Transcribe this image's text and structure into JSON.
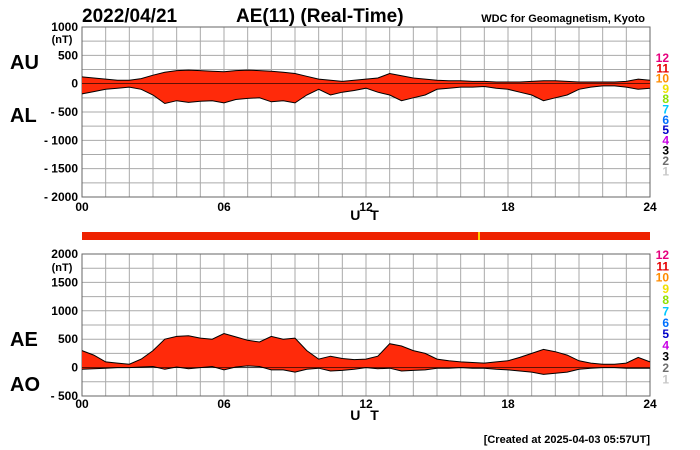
{
  "header": {
    "date": "2022/04/21",
    "title": "AE(11) (Real-Time)",
    "source": "WDC for Geomagnetism, Kyoto"
  },
  "footer": {
    "created": "[Created at 2025-04-03 05:57UT]"
  },
  "colors": {
    "fill": "#ff2a0a",
    "outline": "#000000",
    "grid": "#aaaaaa",
    "data_bar": "#ee2200",
    "data_bar_mark": "#ffcc00"
  },
  "legend": {
    "items": [
      {
        "label": "12",
        "color": "#e6007e"
      },
      {
        "label": "11",
        "color": "#e60000"
      },
      {
        "label": "10",
        "color": "#ff8c00"
      },
      {
        "label": "9",
        "color": "#f0e000"
      },
      {
        "label": "8",
        "color": "#90e000"
      },
      {
        "label": "7",
        "color": "#00c8ff"
      },
      {
        "label": "6",
        "color": "#0070ff"
      },
      {
        "label": "5",
        "color": "#0000c8"
      },
      {
        "label": "4",
        "color": "#c800e6"
      },
      {
        "label": "3",
        "color": "#000000"
      },
      {
        "label": "2",
        "color": "#6e6e6e"
      },
      {
        "label": "1",
        "color": "#c8c8c8"
      }
    ]
  },
  "chart_data": [
    {
      "type": "area",
      "id": "au-al",
      "unit_label": "(nT)",
      "series_labels": [
        "AU",
        "AL"
      ],
      "xlabel": "U T",
      "xlim": [
        0,
        24
      ],
      "ylim": [
        -2000,
        1000
      ],
      "x_ticks": [
        0,
        6,
        12,
        18,
        24
      ],
      "x_tick_labels": [
        "00",
        "06",
        "12",
        "18",
        "24"
      ],
      "y_ticks": [
        1000,
        500,
        0,
        -500,
        -1000,
        -1500,
        -2000
      ],
      "y_tick_labels": [
        "1000",
        "500",
        "0",
        "- 500",
        "- 1000",
        "- 1500",
        "- 2000"
      ],
      "grid": true,
      "x": [
        0,
        0.5,
        1,
        1.5,
        2,
        2.5,
        3,
        3.5,
        4,
        4.5,
        5,
        5.5,
        6,
        6.5,
        7,
        7.5,
        8,
        8.5,
        9,
        9.5,
        10,
        10.5,
        11,
        11.5,
        12,
        12.5,
        13,
        13.5,
        14,
        14.5,
        15,
        15.5,
        16,
        16.5,
        17,
        17.5,
        18,
        18.5,
        19,
        19.5,
        20,
        20.5,
        21,
        21.5,
        22,
        22.5,
        23,
        23.5,
        24
      ],
      "series": [
        {
          "name": "AU",
          "values": [
            120,
            100,
            80,
            60,
            60,
            90,
            150,
            200,
            230,
            240,
            230,
            220,
            210,
            230,
            240,
            230,
            220,
            200,
            180,
            130,
            80,
            60,
            40,
            60,
            80,
            100,
            180,
            140,
            100,
            80,
            60,
            50,
            50,
            40,
            40,
            30,
            30,
            30,
            40,
            50,
            50,
            40,
            30,
            30,
            30,
            30,
            40,
            80,
            60
          ]
        },
        {
          "name": "AL",
          "values": [
            -180,
            -140,
            -100,
            -80,
            -60,
            -100,
            -200,
            -350,
            -300,
            -330,
            -310,
            -300,
            -340,
            -280,
            -260,
            -250,
            -320,
            -300,
            -340,
            -200,
            -100,
            -200,
            -150,
            -120,
            -80,
            -150,
            -200,
            -300,
            -250,
            -200,
            -100,
            -80,
            -60,
            -60,
            -50,
            -80,
            -100,
            -150,
            -200,
            -300,
            -250,
            -200,
            -100,
            -60,
            -40,
            -40,
            -60,
            -100,
            -80
          ]
        }
      ]
    },
    {
      "type": "area",
      "id": "ae-ao",
      "unit_label": "(nT)",
      "series_labels": [
        "AE",
        "AO"
      ],
      "xlabel": "U T",
      "xlim": [
        0,
        24
      ],
      "ylim": [
        -500,
        2000
      ],
      "x_ticks": [
        0,
        6,
        12,
        18,
        24
      ],
      "x_tick_labels": [
        "00",
        "06",
        "12",
        "18",
        "24"
      ],
      "y_ticks": [
        2000,
        1500,
        1000,
        500,
        0,
        -500
      ],
      "y_tick_labels": [
        "2000",
        "1500",
        "1000",
        "500",
        "0",
        "- 500"
      ],
      "grid": true,
      "x": [
        0,
        0.5,
        1,
        1.5,
        2,
        2.5,
        3,
        3.5,
        4,
        4.5,
        5,
        5.5,
        6,
        6.5,
        7,
        7.5,
        8,
        8.5,
        9,
        9.5,
        10,
        10.5,
        11,
        11.5,
        12,
        12.5,
        13,
        13.5,
        14,
        14.5,
        15,
        15.5,
        16,
        16.5,
        17,
        17.5,
        18,
        18.5,
        19,
        19.5,
        20,
        20.5,
        21,
        21.5,
        22,
        22.5,
        23,
        23.5,
        24
      ],
      "series": [
        {
          "name": "AE",
          "values": [
            300,
            220,
            100,
            80,
            60,
            150,
            300,
            500,
            550,
            560,
            520,
            500,
            600,
            540,
            480,
            450,
            550,
            500,
            520,
            300,
            150,
            200,
            160,
            140,
            150,
            200,
            420,
            380,
            300,
            250,
            150,
            120,
            100,
            90,
            80,
            100,
            120,
            180,
            250,
            320,
            280,
            220,
            120,
            80,
            60,
            60,
            80,
            180,
            100
          ]
        },
        {
          "name": "AO",
          "values": [
            -30,
            -20,
            -10,
            0,
            0,
            10,
            20,
            -30,
            10,
            -20,
            0,
            20,
            -40,
            10,
            30,
            20,
            -40,
            -40,
            -80,
            -30,
            -10,
            -60,
            -50,
            -30,
            0,
            -20,
            -10,
            -60,
            -50,
            -40,
            -10,
            -10,
            0,
            -10,
            -10,
            -30,
            -40,
            -60,
            -80,
            -120,
            -100,
            -80,
            -30,
            -10,
            0,
            0,
            -10,
            -10,
            -10
          ]
        }
      ]
    }
  ]
}
